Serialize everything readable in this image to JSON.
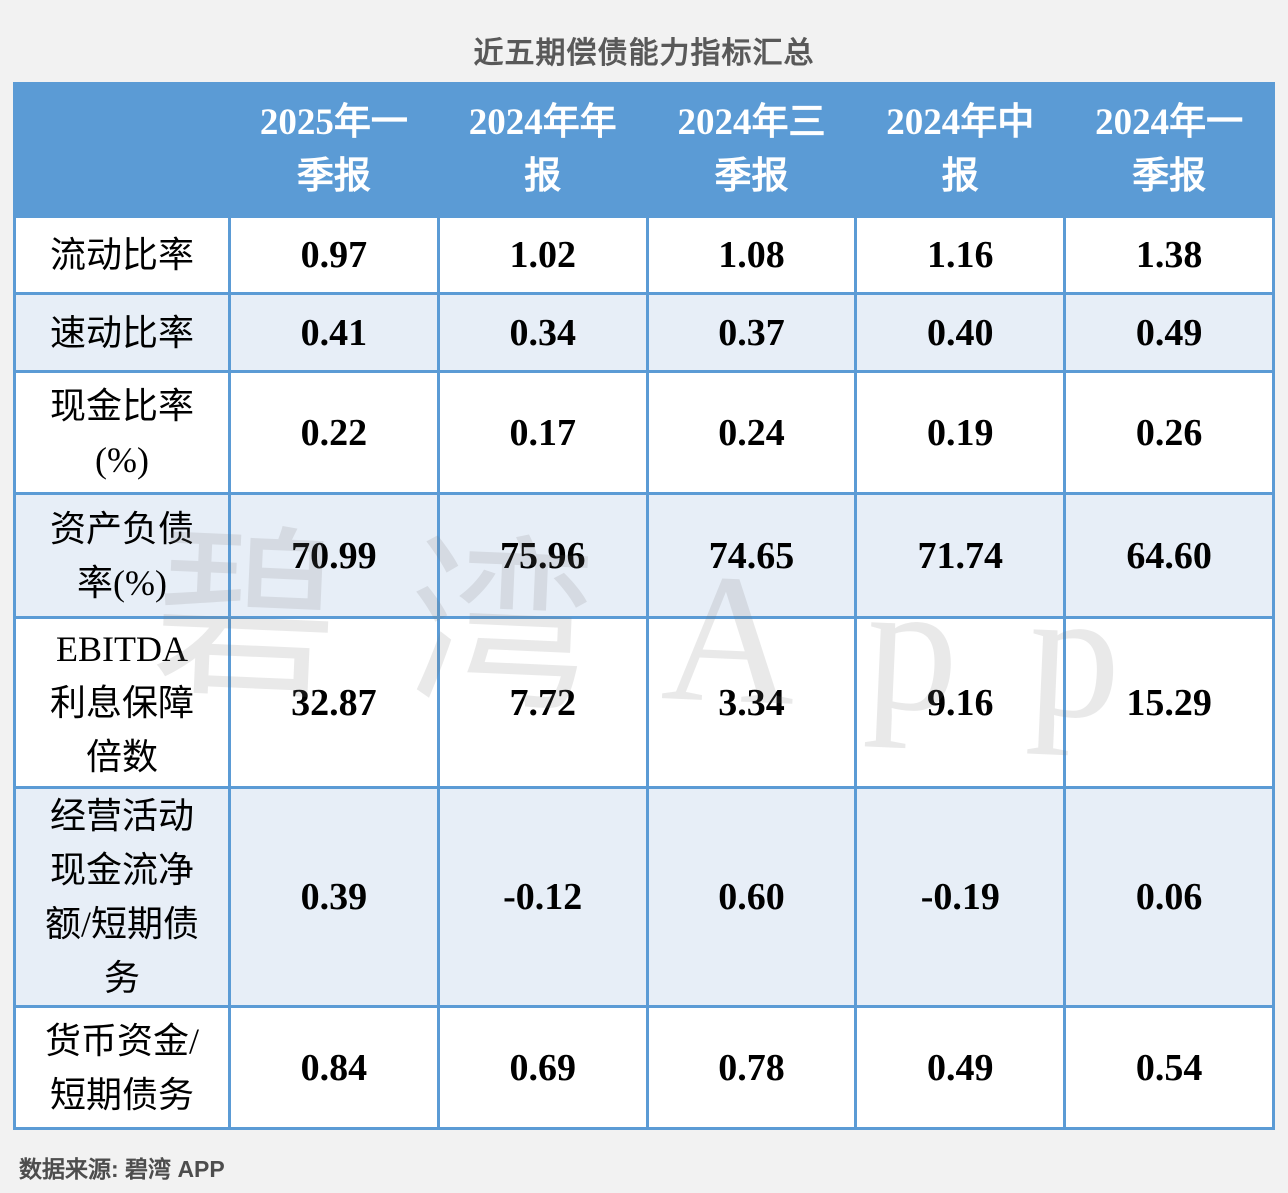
{
  "title": "近五期偿债能力指标汇总",
  "source": "数据来源: 碧湾 APP",
  "watermark": "碧湾App",
  "colors": {
    "header_bg": "#5B9BD5",
    "header_text": "#FFFFFF",
    "alt_row_bg": "#E7EEF7",
    "border": "#5B9BD5",
    "page_bg": "#F2F2F2",
    "title_text": "#595959",
    "cell_text": "#000000"
  },
  "table": {
    "header_display": [
      "",
      "2025年一\n季报",
      "2024年年\n报",
      "2024年三\n季报",
      "2024年中\n报",
      "2024年一\n季报"
    ],
    "rows": [
      {
        "label_display": "流动比率",
        "values": [
          "0.97",
          "1.02",
          "1.08",
          "1.16",
          "1.38"
        ]
      },
      {
        "label_display": "速动比率",
        "values": [
          "0.41",
          "0.34",
          "0.37",
          "0.40",
          "0.49"
        ]
      },
      {
        "label_display": "现金比率\n(%)",
        "values": [
          "0.22",
          "0.17",
          "0.24",
          "0.19",
          "0.26"
        ]
      },
      {
        "label_display": "资产负债\n率(%)",
        "values": [
          "70.99",
          "75.96",
          "74.65",
          "71.74",
          "64.60"
        ]
      },
      {
        "label_display": "EBITDA\n利息保障\n倍数",
        "values": [
          "32.87",
          "7.72",
          "3.34",
          "9.16",
          "15.29"
        ]
      },
      {
        "label_display": "经营活动\n现金流净\n额/短期债\n务",
        "values": [
          "0.39",
          "-0.12",
          "0.60",
          "-0.19",
          "0.06"
        ]
      },
      {
        "label_display": "货币资金/\n短期债务",
        "values": [
          "0.84",
          "0.69",
          "0.78",
          "0.49",
          "0.54"
        ]
      }
    ]
  },
  "chart_data": {
    "type": "table",
    "title": "近五期偿债能力指标汇总",
    "columns": [
      "",
      "2025年一季报",
      "2024年年报",
      "2024年三季报",
      "2024年中报",
      "2024年一季报"
    ],
    "rows": [
      {
        "label": "流动比率",
        "values": [
          0.97,
          1.02,
          1.08,
          1.16,
          1.38
        ]
      },
      {
        "label": "速动比率",
        "values": [
          0.41,
          0.34,
          0.37,
          0.4,
          0.49
        ]
      },
      {
        "label": "现金比率(%)",
        "values": [
          0.22,
          0.17,
          0.24,
          0.19,
          0.26
        ]
      },
      {
        "label": "资产负债率(%)",
        "values": [
          70.99,
          75.96,
          74.65,
          71.74,
          64.6
        ]
      },
      {
        "label": "EBITDA利息保障倍数",
        "values": [
          32.87,
          7.72,
          3.34,
          9.16,
          15.29
        ]
      },
      {
        "label": "经营活动现金流净额/短期债务",
        "values": [
          0.39,
          -0.12,
          0.6,
          -0.19,
          0.06
        ]
      },
      {
        "label": "货币资金/短期债务",
        "values": [
          0.84,
          0.69,
          0.78,
          0.49,
          0.54
        ]
      }
    ],
    "source": "数据来源: 碧湾 APP",
    "layout": {
      "label_column_header_blank": true,
      "alternating_row_shading": true
    }
  }
}
